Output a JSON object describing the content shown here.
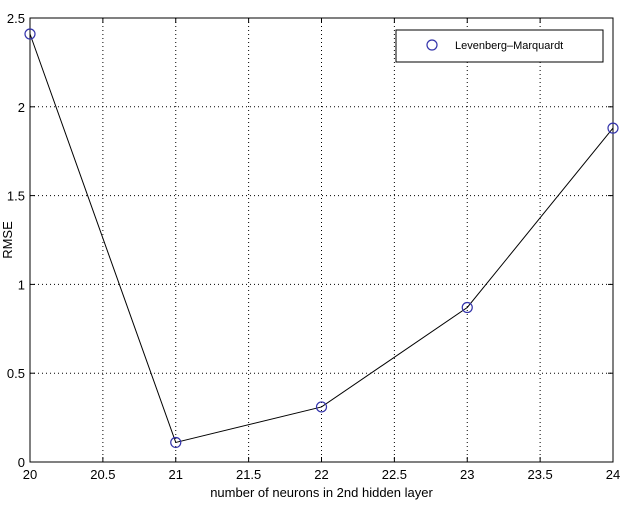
{
  "chart_data": {
    "type": "line",
    "title": "",
    "xlabel": "number of neurons in 2nd hidden layer",
    "ylabel": "RMSE",
    "xlim": [
      20,
      24
    ],
    "ylim": [
      0,
      2.5
    ],
    "x_ticks": [
      20,
      20.5,
      21,
      21.5,
      22,
      22.5,
      23,
      23.5,
      24
    ],
    "y_ticks": [
      0,
      0.5,
      1,
      1.5,
      2,
      2.5
    ],
    "x_tick_labels": [
      "20",
      "20.5",
      "21",
      "21.5",
      "22",
      "22.5",
      "23",
      "23.5",
      "24"
    ],
    "y_tick_labels": [
      "0",
      "0.5",
      "1",
      "1.5",
      "2",
      "2.5"
    ],
    "grid": true,
    "legend_position": "top-right",
    "series": [
      {
        "name": "Levenberg–Marquardt",
        "marker": "circle",
        "marker_color": "#3333aa",
        "line_color": "#000000",
        "x": [
          20,
          21,
          22,
          23,
          24
        ],
        "y": [
          2.41,
          0.11,
          0.31,
          0.87,
          1.88
        ]
      }
    ]
  }
}
